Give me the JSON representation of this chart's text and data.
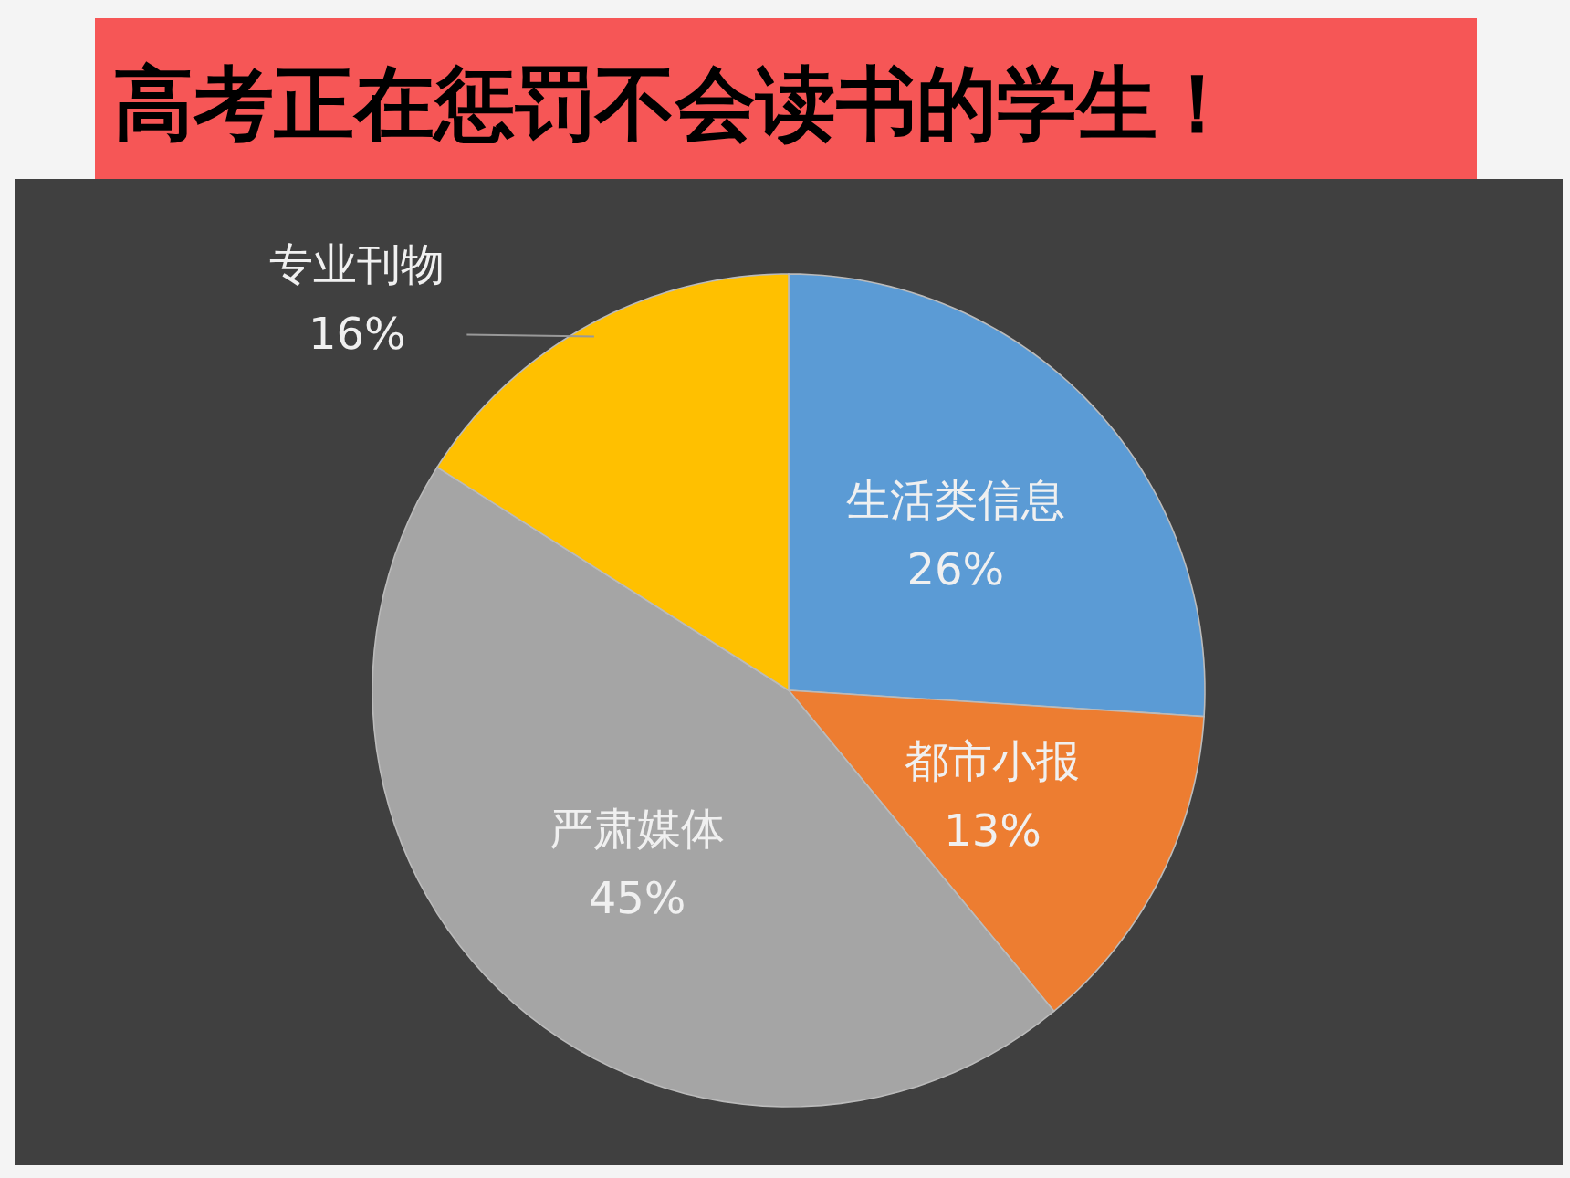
{
  "chart_data": {
    "type": "pie",
    "title": "高考正在惩罚不会读书的学生！",
    "categories": [
      "生活类信息",
      "都市小报",
      "严肃媒体",
      "专业刊物"
    ],
    "values": [
      26,
      13,
      45,
      16
    ],
    "value_labels": [
      "26%",
      "13%",
      "45%",
      "16%"
    ],
    "colors": [
      "#5b9bd5",
      "#ed7d31",
      "#a5a5a5",
      "#ffc000"
    ]
  }
}
